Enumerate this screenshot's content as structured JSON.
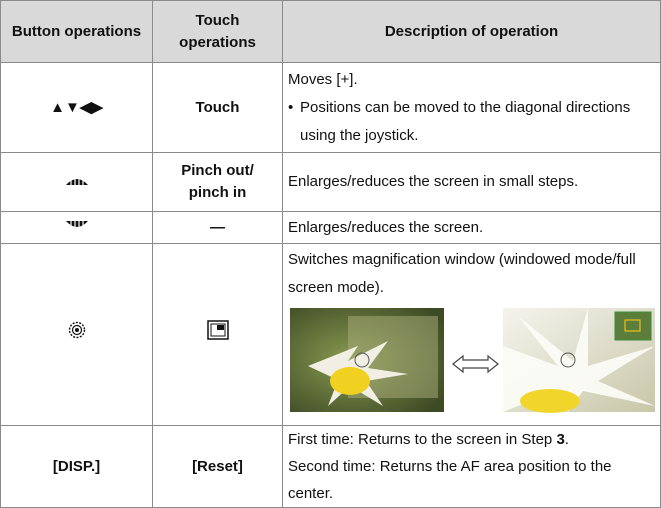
{
  "table": {
    "header": [
      "Button operations",
      "Touch operations",
      "Description of operation"
    ],
    "rows": [
      {
        "button": "▲▼◀▶",
        "touch": "Touch",
        "description": "Moves [+].",
        "bullet": "Positions can be moved to the diagonal directions using the joystick."
      },
      {
        "touch_lines": [
          "Pinch out/",
          "pinch in"
        ],
        "description": "Enlarges/reduces the screen in small steps."
      },
      {
        "touch": "—",
        "description": "Enlarges/reduces the screen."
      },
      {
        "description": "Switches magnification window (windowed mode/full screen mode)."
      },
      {
        "button": "[DISP.]",
        "touch": "[Reset]",
        "description_parts": [
          "First time: Returns to the screen in Step ",
          "3",
          "."
        ],
        "description2": "Second time: Returns the AF area position to the center."
      }
    ]
  }
}
